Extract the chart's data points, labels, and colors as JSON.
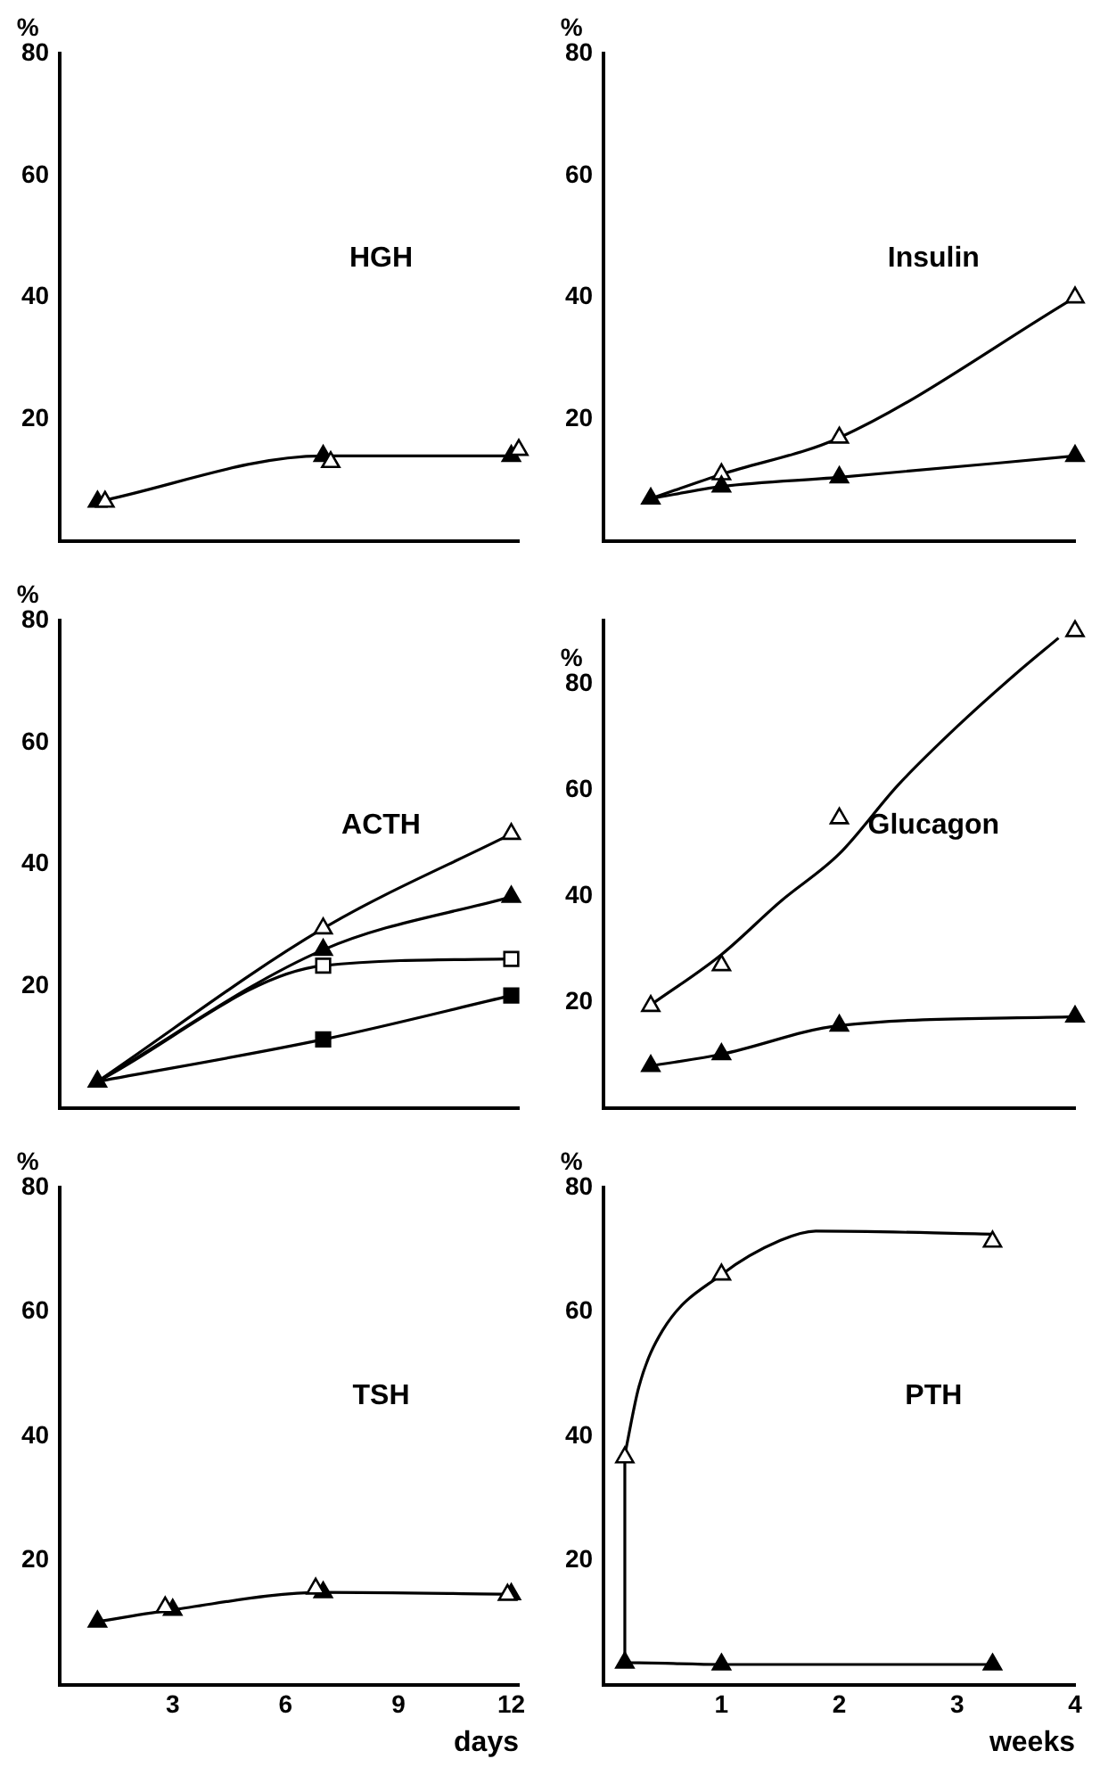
{
  "chart_data": [
    {
      "type": "line",
      "title": "HGH",
      "ylabel": "%",
      "xlim": [
        0,
        12.2
      ],
      "ylim": [
        0,
        80
      ],
      "yticks": [
        20,
        40,
        60,
        80
      ],
      "tick_labels": "y",
      "series": [
        {
          "type": "line",
          "color": "#000000",
          "marker": "none",
          "x": [
            1,
            7,
            12
          ],
          "values": [
            6.5,
            14,
            14
          ]
        },
        {
          "type": "scatter",
          "color": "#000000",
          "marker": "triangle",
          "x": [
            1,
            7,
            12
          ],
          "values": [
            6.5,
            14,
            14
          ]
        },
        {
          "type": "scatter",
          "color": "#ffffff",
          "marker": "triangle",
          "x": [
            1.2,
            7.2,
            12.2
          ],
          "values": [
            6.5,
            13,
            15
          ]
        }
      ]
    },
    {
      "type": "line",
      "title": "Insulin",
      "ylabel": "%",
      "xlim": [
        0,
        4
      ],
      "ylim": [
        0,
        80
      ],
      "yticks": [
        20,
        40,
        60,
        80
      ],
      "tick_labels": "y",
      "series": [
        {
          "type": "line",
          "color": "#000000",
          "marker": "none",
          "x": [
            0.4,
            1,
            2,
            4
          ],
          "values": [
            7,
            11,
            17,
            40
          ]
        },
        {
          "type": "line",
          "color": "#000000",
          "marker": "none",
          "x": [
            0.4,
            1,
            2,
            4
          ],
          "values": [
            7,
            9,
            10.5,
            14
          ]
        },
        {
          "type": "scatter",
          "color": "#ffffff",
          "marker": "triangle",
          "x": [
            1,
            2,
            4
          ],
          "values": [
            11,
            17,
            40
          ]
        },
        {
          "type": "scatter",
          "color": "#000000",
          "marker": "triangle",
          "x": [
            0.4,
            1,
            2,
            4
          ],
          "values": [
            7,
            9,
            10.5,
            14
          ]
        }
      ]
    },
    {
      "type": "line",
      "title": "ACTH",
      "ylabel": "%",
      "xlim": [
        0,
        12.2
      ],
      "ylim": [
        0,
        80
      ],
      "yticks": [
        20,
        40,
        60,
        80
      ],
      "tick_labels": "y",
      "series": [
        {
          "type": "line",
          "color": "#000000",
          "marker": "none",
          "x": [
            1,
            7,
            12
          ],
          "values": [
            4.4,
            29.5,
            45
          ]
        },
        {
          "type": "line",
          "color": "#000000",
          "marker": "none",
          "x": [
            1,
            7,
            12
          ],
          "values": [
            4.4,
            26,
            34.7
          ]
        },
        {
          "type": "line",
          "color": "#000000",
          "marker": "none",
          "x": [
            1,
            7,
            12
          ],
          "values": [
            4.4,
            23.4,
            24.5
          ]
        },
        {
          "type": "line",
          "color": "#000000",
          "marker": "none",
          "x": [
            1,
            7,
            12
          ],
          "values": [
            4.4,
            11.3,
            18.5
          ]
        },
        {
          "type": "scatter",
          "color": "#000000",
          "marker": "triangle",
          "x": [
            1
          ],
          "values": [
            4.4
          ]
        },
        {
          "type": "scatter",
          "color": "#ffffff",
          "marker": "triangle",
          "x": [
            7,
            12
          ],
          "values": [
            29.5,
            45
          ]
        },
        {
          "type": "scatter",
          "color": "#000000",
          "marker": "triangle",
          "x": [
            7,
            12
          ],
          "values": [
            26,
            34.7
          ]
        },
        {
          "type": "scatter",
          "color": "#ffffff",
          "marker": "square",
          "x": [
            7,
            12
          ],
          "values": [
            23.4,
            24.5
          ]
        },
        {
          "type": "scatter",
          "color": "#000000",
          "marker": "square",
          "x": [
            7,
            12
          ],
          "values": [
            11.3,
            18.5
          ]
        }
      ]
    },
    {
      "type": "line",
      "title": "Glucagon",
      "ylabel": "%",
      "xlim": [
        0,
        4
      ],
      "ylim": [
        0,
        92
      ],
      "yticks": [
        20,
        40,
        60,
        80
      ],
      "tick_labels": "y",
      "series": [
        {
          "type": "line",
          "color": "#000000",
          "marker": "none",
          "x": [
            0.4,
            1,
            1.5,
            2,
            2.5,
            3,
            3.5,
            3.86
          ],
          "values": [
            19.5,
            29,
            39,
            48,
            61,
            72,
            82,
            88.7
          ]
        },
        {
          "type": "line",
          "color": "#000000",
          "marker": "none",
          "x": [
            0.4,
            1,
            2,
            4
          ],
          "values": [
            8,
            10.2,
            15.6,
            17.3
          ]
        },
        {
          "type": "scatter",
          "color": "#ffffff",
          "marker": "triangle",
          "x": [
            0.4,
            1,
            2,
            4
          ],
          "values": [
            19.3,
            27,
            54.7,
            90
          ]
        },
        {
          "type": "scatter",
          "color": "#000000",
          "marker": "triangle",
          "x": [
            0.4,
            1,
            2,
            4
          ],
          "values": [
            8,
            10.2,
            15.6,
            17.3
          ]
        }
      ]
    },
    {
      "type": "line",
      "title": "TSH",
      "ylabel": "%",
      "xlabel": "days",
      "xlim": [
        0,
        12.2
      ],
      "ylim": [
        0,
        80
      ],
      "xticks": [
        3,
        6,
        9,
        12
      ],
      "yticks": [
        20,
        40,
        60,
        80
      ],
      "series": [
        {
          "type": "line",
          "color": "#000000",
          "marker": "none",
          "x": [
            1,
            3,
            7,
            12
          ],
          "values": [
            10.2,
            12.1,
            14.9,
            14.6
          ]
        },
        {
          "type": "scatter",
          "color": "#000000",
          "marker": "triangle",
          "x": [
            1,
            3,
            7,
            12
          ],
          "values": [
            10.2,
            12.1,
            14.9,
            14.6
          ]
        },
        {
          "type": "scatter",
          "color": "#ffffff",
          "marker": "triangle",
          "x": [
            2.8,
            6.8,
            11.9
          ],
          "values": [
            12.5,
            15.5,
            14.5
          ]
        }
      ]
    },
    {
      "type": "line",
      "title": "PTH",
      "ylabel": "%",
      "xlabel": "weeks",
      "xlim": [
        0,
        4
      ],
      "ylim": [
        0,
        80
      ],
      "xticks": [
        1,
        2,
        3,
        4
      ],
      "yticks": [
        20,
        40,
        60,
        80
      ],
      "series": [
        {
          "type": "line",
          "color": "#000000",
          "marker": "none",
          "x": [
            0.18,
            0.3,
            0.5,
            1,
            1.5,
            1.8,
            3.3
          ],
          "values": [
            37,
            48,
            57,
            66,
            71.5,
            73,
            72.5
          ]
        },
        {
          "type": "line",
          "color": "#000000",
          "marker": "none",
          "x": [
            0.18,
            0.18,
            1,
            3.3
          ],
          "values": [
            37,
            3.6,
            3.3,
            3.3
          ]
        },
        {
          "type": "scatter",
          "color": "#ffffff",
          "marker": "triangle",
          "x": [
            0.18,
            1,
            3.3
          ],
          "values": [
            36.6,
            66,
            71.3
          ]
        },
        {
          "type": "scatter",
          "color": "#000000",
          "marker": "triangle",
          "x": [
            0.18,
            1,
            3.3
          ],
          "values": [
            3.6,
            3.3,
            3.3
          ]
        }
      ]
    }
  ]
}
